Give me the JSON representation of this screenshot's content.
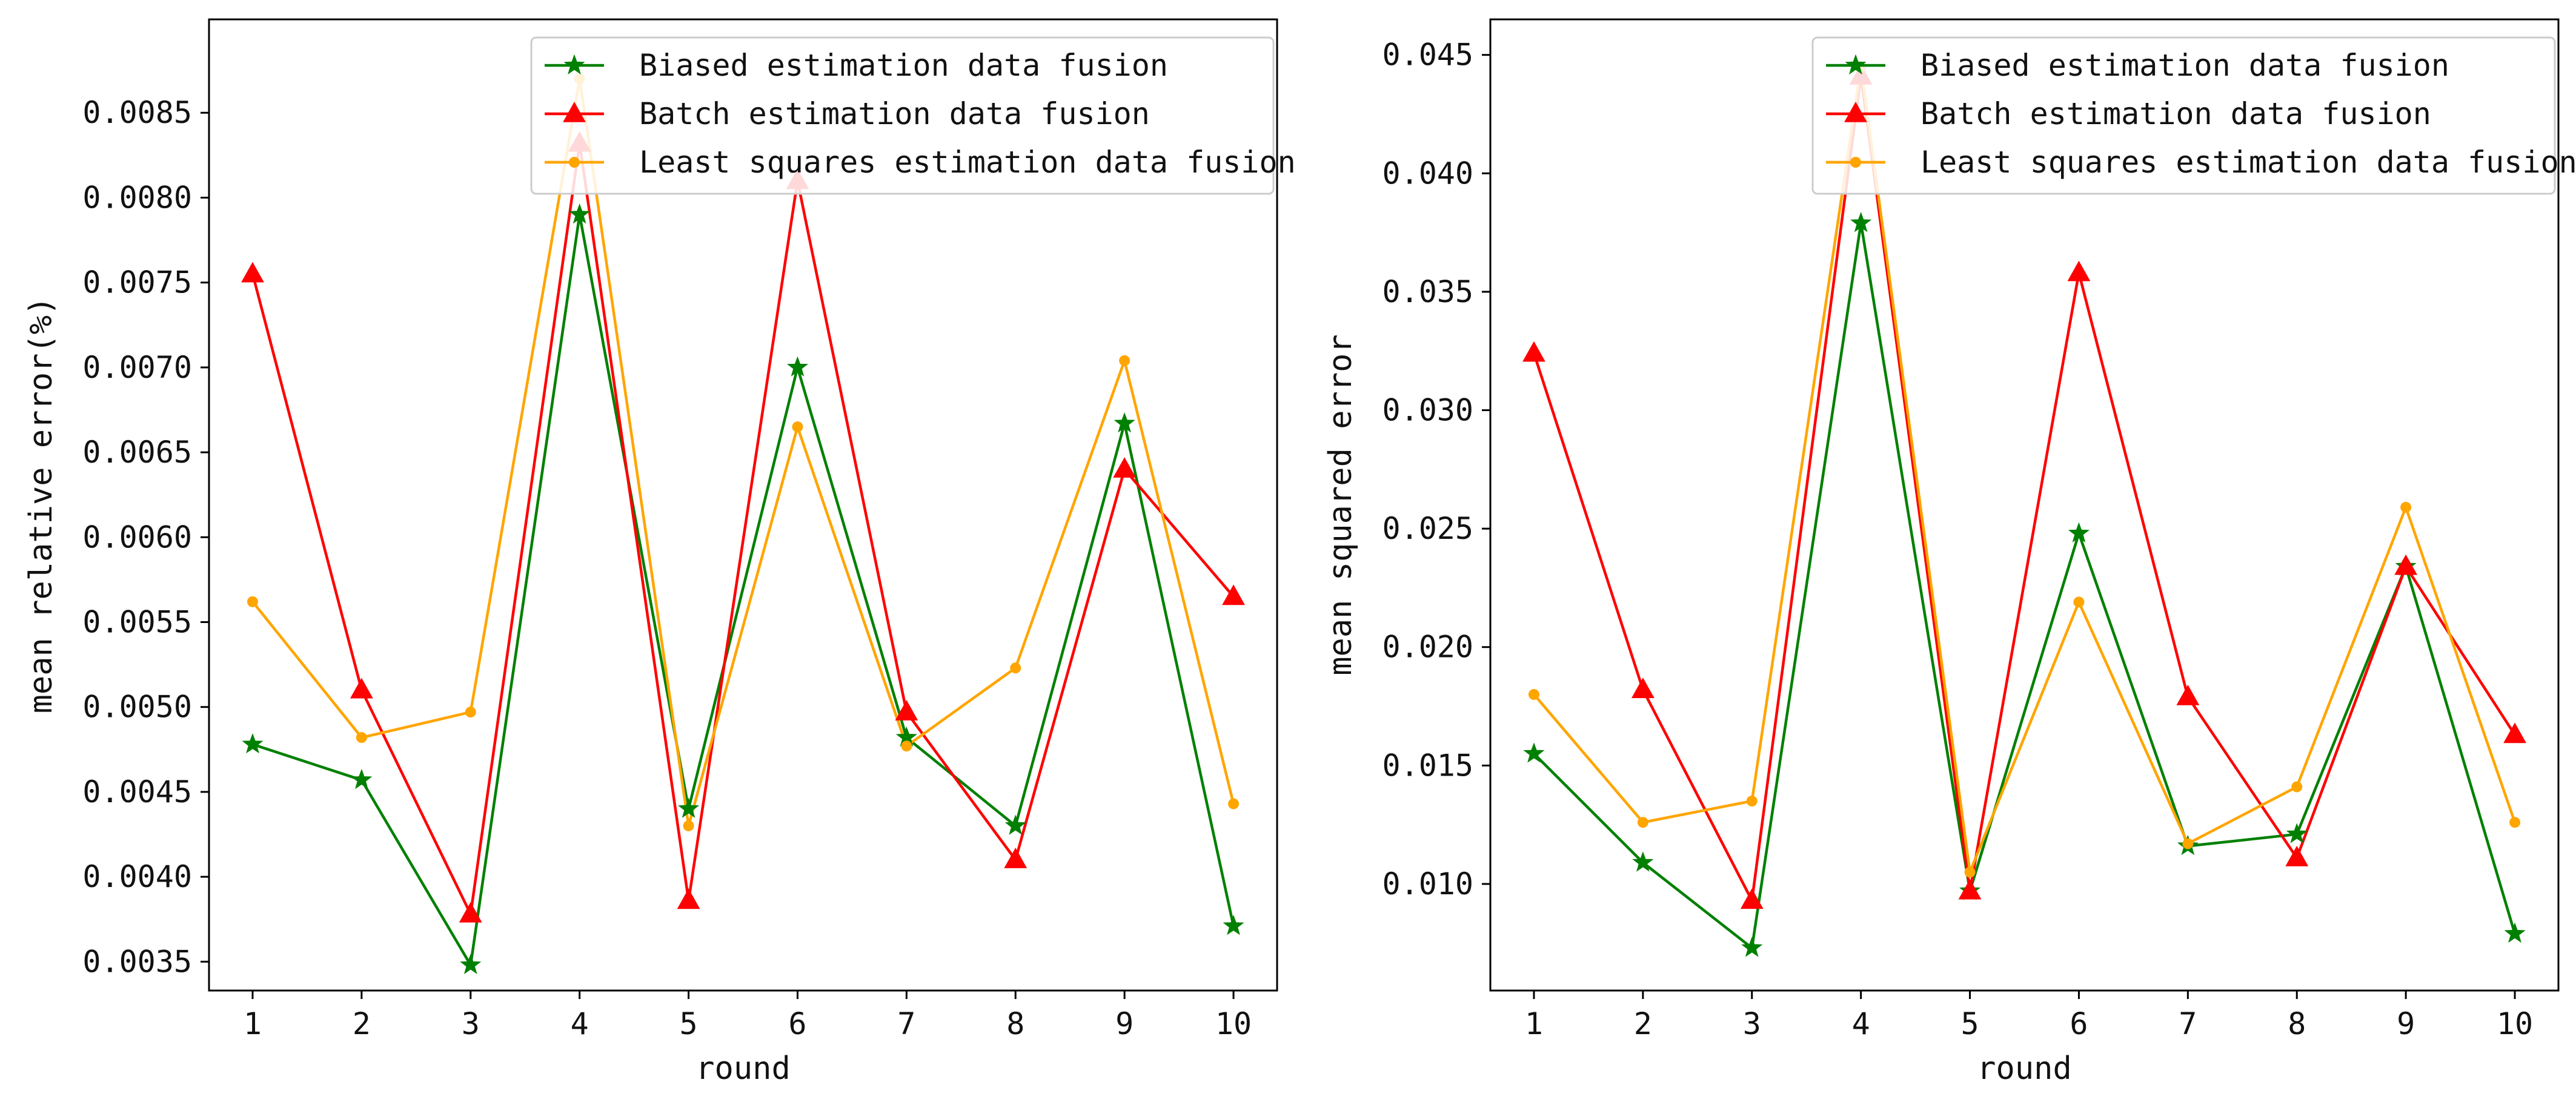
{
  "chart_data": [
    {
      "type": "line",
      "title": "",
      "xlabel": "round",
      "ylabel": "mean relative error(%)",
      "x": [
        1,
        2,
        3,
        4,
        5,
        6,
        7,
        8,
        9,
        10
      ],
      "xlim": [
        0.6,
        10.4
      ],
      "ylim": [
        0.00333,
        0.00905
      ],
      "xticks": [
        "1",
        "2",
        "3",
        "4",
        "5",
        "6",
        "7",
        "8",
        "9",
        "10"
      ],
      "yticks": [
        0.0035,
        0.004,
        0.0045,
        0.005,
        0.0055,
        0.006,
        0.0065,
        0.007,
        0.0075,
        0.008,
        0.0085
      ],
      "ytick_labels": [
        "0.0035",
        "0.0040",
        "0.0045",
        "0.0050",
        "0.0055",
        "0.0060",
        "0.0065",
        "0.0070",
        "0.0075",
        "0.0080",
        "0.0085"
      ],
      "grid": false,
      "legend_position": "top-right",
      "series": [
        {
          "name": "Biased estimation data fusion",
          "color": "#008000",
          "marker": "star",
          "values": [
            0.00478,
            0.00457,
            0.00348,
            0.0079,
            0.0044,
            0.007,
            0.00482,
            0.0043,
            0.00667,
            0.00371
          ]
        },
        {
          "name": "Batch estimation data fusion",
          "color": "#ff0000",
          "marker": "triangle",
          "values": [
            0.00755,
            0.0051,
            0.00378,
            0.00832,
            0.00386,
            0.0081,
            0.00497,
            0.0041,
            0.0064,
            0.00565
          ]
        },
        {
          "name": "Least squares estimation data fusion",
          "color": "#ffa500",
          "marker": "dot",
          "values": [
            0.00562,
            0.00482,
            0.00497,
            0.0087,
            0.0043,
            0.00665,
            0.00477,
            0.00523,
            0.00704,
            0.00443
          ]
        }
      ]
    },
    {
      "type": "line",
      "title": "",
      "xlabel": "round",
      "ylabel": "mean squared error",
      "x": [
        1,
        2,
        3,
        4,
        5,
        6,
        7,
        8,
        9,
        10
      ],
      "xlim": [
        0.6,
        10.4
      ],
      "ylim": [
        0.0055,
        0.0465
      ],
      "xticks": [
        "1",
        "2",
        "3",
        "4",
        "5",
        "6",
        "7",
        "8",
        "9",
        "10"
      ],
      "yticks": [
        0.01,
        0.015,
        0.02,
        0.025,
        0.03,
        0.035,
        0.04,
        0.045
      ],
      "ytick_labels": [
        "0.010",
        "0.015",
        "0.020",
        "0.025",
        "0.030",
        "0.035",
        "0.040",
        "0.045"
      ],
      "grid": false,
      "legend_position": "top-right",
      "series": [
        {
          "name": "Biased estimation data fusion",
          "color": "#008000",
          "marker": "star",
          "values": [
            0.0155,
            0.0109,
            0.0073,
            0.0379,
            0.0097,
            0.0248,
            0.0116,
            0.0121,
            0.0234,
            0.0079
          ]
        },
        {
          "name": "Batch estimation data fusion",
          "color": "#ff0000",
          "marker": "triangle",
          "values": [
            0.0324,
            0.0182,
            0.0093,
            0.0441,
            0.0097,
            0.0358,
            0.0179,
            0.0111,
            0.0234,
            0.0163
          ]
        },
        {
          "name": "Least squares estimation data fusion",
          "color": "#ffa500",
          "marker": "dot",
          "values": [
            0.018,
            0.0126,
            0.0135,
            0.0445,
            0.0105,
            0.0219,
            0.0117,
            0.0141,
            0.0259,
            0.0126
          ]
        }
      ]
    }
  ]
}
